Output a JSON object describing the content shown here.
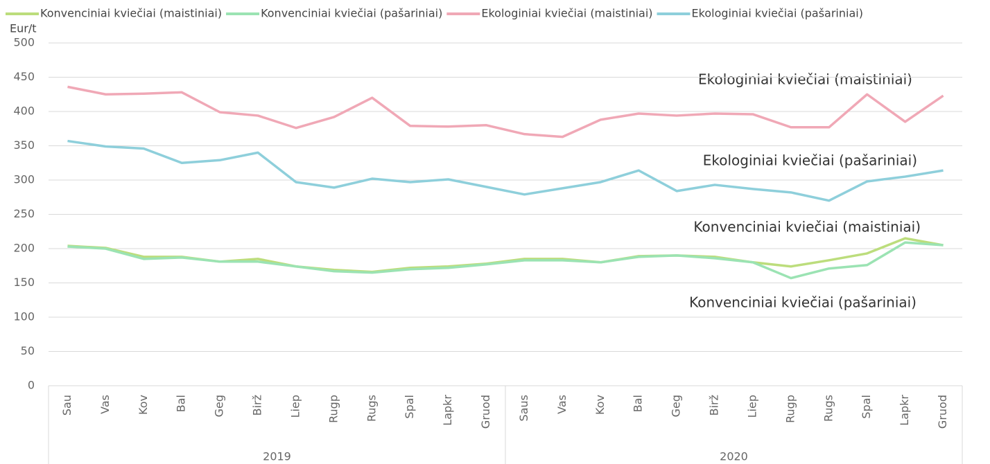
{
  "chart_data": {
    "type": "line",
    "y_label": "Eur/t",
    "categories": [
      "Sau",
      "Vas",
      "Kov",
      "Bal",
      "Geg",
      "Birž",
      "Liep",
      "Rugp",
      "Rugs",
      "Spal",
      "Lapkr",
      "Gruod",
      "Saus",
      "Vas",
      "Kov",
      "Bal",
      "Geg",
      "Birž",
      "Liep",
      "Rugp",
      "Rugs",
      "Spal",
      "Lapkr",
      "Gruod"
    ],
    "groups": [
      {
        "label": "2019",
        "span": 12
      },
      {
        "label": "2020",
        "span": 12
      }
    ],
    "series": [
      {
        "name": "Konvenciniai kviečiai (maistiniai)",
        "color": "#bcdd7c",
        "values": [
          204,
          201,
          188,
          188,
          181,
          185,
          174,
          169,
          166,
          172,
          174,
          178,
          185,
          185,
          180,
          189,
          190,
          188,
          180,
          174,
          183,
          193,
          215,
          205
        ]
      },
      {
        "name": "Konvenciniai kviečiai (pašariniai)",
        "color": "#9be3b3",
        "values": [
          203,
          200,
          185,
          187,
          181,
          181,
          174,
          167,
          165,
          170,
          172,
          177,
          183,
          183,
          180,
          188,
          190,
          186,
          180,
          157,
          171,
          176,
          209,
          205
        ]
      },
      {
        "name": "Ekologiniai kviečiai (maistiniai)",
        "color": "#f0a8b6",
        "values": [
          436,
          425,
          426,
          428,
          399,
          394,
          376,
          392,
          420,
          379,
          378,
          380,
          367,
          363,
          388,
          397,
          394,
          397,
          396,
          377,
          377,
          425,
          385,
          423
        ]
      },
      {
        "name": "Ekologiniai kviečiai (pašariniai)",
        "color": "#8ecfdb",
        "values": [
          357,
          349,
          346,
          325,
          329,
          340,
          297,
          289,
          302,
          297,
          301,
          290,
          279,
          288,
          297,
          314,
          284,
          293,
          287,
          282,
          270,
          298,
          305,
          314
        ]
      }
    ],
    "ylim": [
      0,
      500
    ],
    "yticks": [
      0,
      50,
      100,
      150,
      200,
      250,
      300,
      350,
      400,
      450,
      500
    ],
    "grid": true,
    "legend": "top"
  }
}
